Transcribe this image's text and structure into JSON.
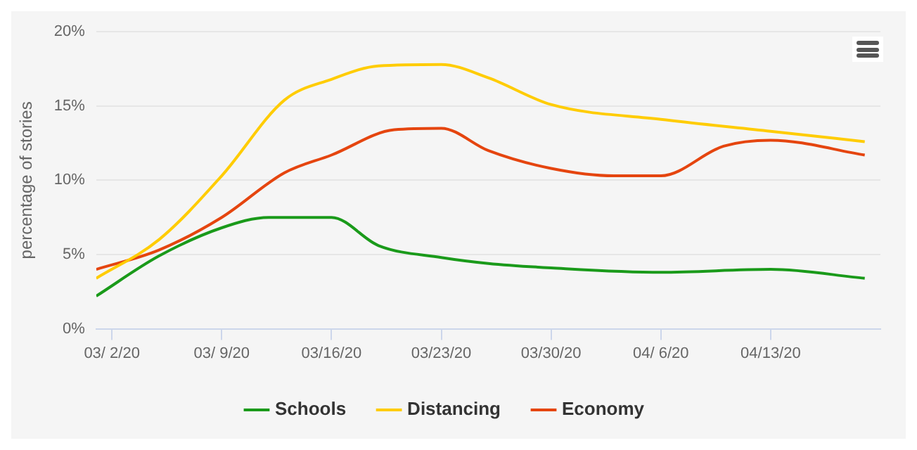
{
  "chart_data": {
    "type": "line",
    "ylabel": "percentage of stories",
    "xlim": [
      "--03-01",
      "--04-20"
    ],
    "xticks": [
      {
        "value": "--03-02",
        "label": "03/ 2/20"
      },
      {
        "value": "--03-09",
        "label": "03/ 9/20"
      },
      {
        "value": "--03-16",
        "label": "03/16/20"
      },
      {
        "value": "--03-23",
        "label": "03/23/20"
      },
      {
        "value": "--03-30",
        "label": "03/30/20"
      },
      {
        "value": "--04-06",
        "label": "04/ 6/20"
      },
      {
        "value": "--04-13",
        "label": "04/13/20"
      }
    ],
    "ylim": [
      0,
      20
    ],
    "yticks": [
      {
        "value": 0,
        "label": "0%"
      },
      {
        "value": 5,
        "label": "5%"
      },
      {
        "value": 10,
        "label": "10%"
      },
      {
        "value": 15,
        "label": "15%"
      },
      {
        "value": 20,
        "label": "20%"
      }
    ],
    "grid": "y",
    "legend": "bottom",
    "marker": "none",
    "line_style": "solid",
    "series": [
      {
        "name": "Schools",
        "color": "#1a9a1a",
        "x": [
          "--03-01",
          "--03-05",
          "--03-09",
          "--03-12",
          "--03-16",
          "--03-19",
          "--03-23",
          "--03-26",
          "--03-30",
          "--04-06",
          "--04-13",
          "--04-19"
        ],
        "values": [
          2.2,
          4.9,
          6.8,
          7.5,
          7.5,
          5.6,
          4.8,
          4.4,
          4.1,
          3.8,
          4.0,
          3.4
        ]
      },
      {
        "name": "Distancing",
        "color": "#ffcc00",
        "x": [
          "--03-01",
          "--03-05",
          "--03-09",
          "--03-13",
          "--03-16",
          "--03-19",
          "--03-23",
          "--03-26",
          "--03-30",
          "--04-06",
          "--04-13",
          "--04-19"
        ],
        "values": [
          3.4,
          6.0,
          10.3,
          15.4,
          16.8,
          17.7,
          17.8,
          16.9,
          15.1,
          14.1,
          13.3,
          12.6
        ]
      },
      {
        "name": "Economy",
        "color": "#e5450f",
        "x": [
          "--03-01",
          "--03-05",
          "--03-09",
          "--03-13",
          "--03-16",
          "--03-20",
          "--03-23",
          "--03-26",
          "--03-30",
          "--04-03",
          "--04-06",
          "--04-10",
          "--04-13",
          "--04-19"
        ],
        "values": [
          4.0,
          5.3,
          7.5,
          10.5,
          11.7,
          13.4,
          13.5,
          12.0,
          10.8,
          10.3,
          10.3,
          12.3,
          12.7,
          11.7
        ]
      }
    ]
  }
}
